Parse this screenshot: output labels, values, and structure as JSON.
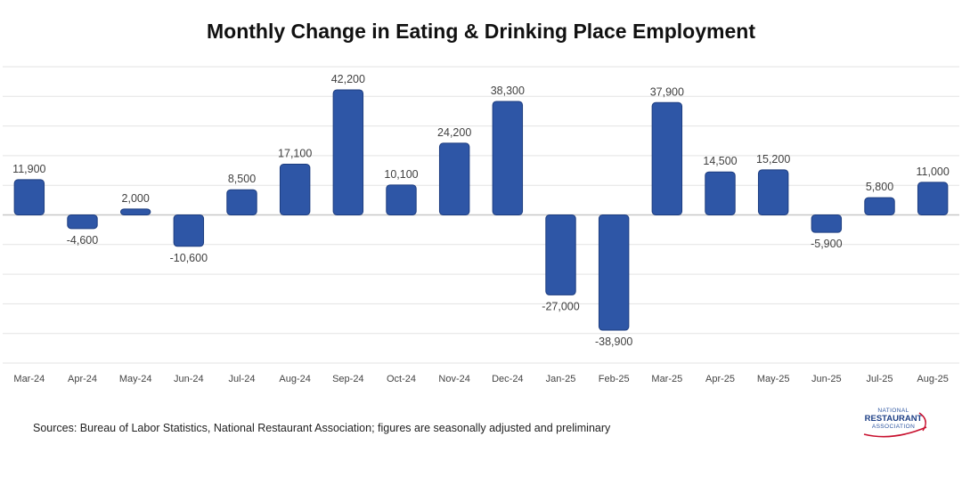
{
  "chart_data": {
    "type": "bar",
    "title": "Monthly Change in Eating & Drinking Place Employment",
    "categories": [
      "Mar-24",
      "Apr-24",
      "May-24",
      "Jun-24",
      "Jul-24",
      "Aug-24",
      "Sep-24",
      "Oct-24",
      "Nov-24",
      "Dec-24",
      "Jan-25",
      "Feb-25",
      "Mar-25",
      "Apr-25",
      "May-25",
      "Jun-25",
      "Jul-25",
      "Aug-25"
    ],
    "values": [
      11900,
      -4600,
      2000,
      -10600,
      8500,
      17100,
      42200,
      10100,
      24200,
      38300,
      -27000,
      -38900,
      37900,
      14500,
      15200,
      -5900,
      5800,
      11000
    ],
    "data_labels": [
      "11,900",
      "-4,600",
      "2,000",
      "-10,600",
      "8,500",
      "17,100",
      "42,200",
      "10,100",
      "24,200",
      "38,300",
      "-27,000",
      "-38,900",
      "37,900",
      "14,500",
      "15,200",
      "-5,900",
      "5,800",
      "11,000"
    ],
    "ylim": [
      -50000,
      50000
    ],
    "gridline_step": 10000,
    "grid": true,
    "legend": "none",
    "bar_color": "#2e56a6",
    "bar_edge_color": "#1d3d80",
    "grid_color": "#e3e3e3",
    "axis_color": "#c8c8c8"
  },
  "footer": {
    "source": "Sources: Bureau of Labor Statistics, National Restaurant Association; figures are seasonally adjusted and preliminary"
  },
  "logo": {
    "line1": "NATIONAL",
    "line2": "RESTAURANT",
    "line3": "ASSOCIATION"
  }
}
